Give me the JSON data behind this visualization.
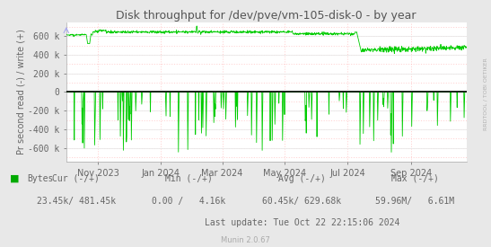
{
  "title": "Disk throughput for /dev/pve/vm-105-disk-0 - by year",
  "ylabel": "Pr second read (-) / write (+)",
  "yticks": [
    -600000,
    -400000,
    -200000,
    0,
    200000,
    400000,
    600000
  ],
  "ytick_labels": [
    "-600 k",
    "-400 k",
    "-200 k",
    "0",
    "200 k",
    "400 k",
    "600 k"
  ],
  "ylim": [
    -750000,
    750000
  ],
  "xlim_start": 1696118400,
  "xlim_end": 1729814400,
  "outer_bg_color": "#e8e8e8",
  "plot_bg_color": "#ffffff",
  "grid_color_major": "#e8e8e8",
  "grid_color_minor": "#ffb0b0",
  "line_color": "#00cc00",
  "zero_line_color": "#000000",
  "title_color": "#555555",
  "axis_color": "#666666",
  "right_label": "RRDTOOL / TOBI OETIKER",
  "footer_left": "Munin 2.0.67",
  "footer_update": "Last update: Tue Oct 22 22:15:06 2024",
  "legend_color": "#00aa00",
  "legend_label": "Bytes",
  "xtick_positions": [
    1698796800,
    1704067200,
    1709251200,
    1714521600,
    1719792000,
    1725148800
  ],
  "xtick_labels": [
    "Nov 2023",
    "Jan 2024",
    "Mar 2024",
    "May 2024",
    "Jul 2024",
    "Sep 2024"
  ],
  "stats_cur": "Cur (-/+)",
  "stats_min": "Min (-/+)",
  "stats_avg": "Avg (-/+)",
  "stats_max": "Max (-/+)",
  "val_cur": "23.45k/ 481.45k",
  "val_min": "0.00 /   4.16k",
  "val_avg": "60.45k/ 629.68k",
  "val_max": "59.96M/   6.61M"
}
